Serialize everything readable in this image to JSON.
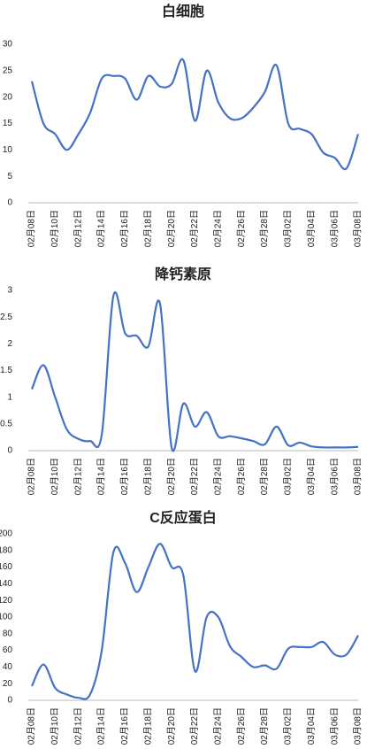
{
  "chart_data": [
    {
      "type": "line",
      "title": "白细胞",
      "categories": [
        "02月08日",
        null,
        "02月10日",
        null,
        "02月12日",
        null,
        "02月14日",
        null,
        "02月16日",
        null,
        "02月18日",
        null,
        "02月20日",
        null,
        "02月22日",
        null,
        "02月24日",
        null,
        "02月26日",
        null,
        "02月28日",
        null,
        "03月02日",
        null,
        "03月04日",
        null,
        "03月06日",
        null,
        "03月08日"
      ],
      "series": [
        {
          "name": "白细胞",
          "color": "#4472c4",
          "values": [
            23,
            15,
            13,
            10,
            13,
            17,
            23.5,
            24,
            23.5,
            19.5,
            24,
            22,
            22.5,
            27,
            15.5,
            25,
            19,
            16,
            16,
            18,
            21,
            26,
            15,
            14,
            13,
            9.5,
            8.5,
            6.5,
            13
          ]
        }
      ],
      "ylim": [
        0,
        30
      ],
      "yticks": [
        0,
        5,
        10,
        15,
        20,
        25,
        30
      ],
      "grid": false
    },
    {
      "type": "line",
      "title": "降钙素原",
      "categories": [
        "02月08日",
        null,
        "02月10日",
        null,
        "02月12日",
        null,
        "02月14日",
        null,
        "02月16日",
        null,
        "02月18日",
        null,
        "02月20日",
        null,
        "02月22日",
        null,
        "02月24日",
        null,
        "02月26日",
        null,
        "02月28日",
        null,
        "03月02日",
        null,
        "03月04日",
        null,
        "03月06日",
        null,
        "03月08日"
      ],
      "series": [
        {
          "name": "降钙素原",
          "color": "#4472c4",
          "values": [
            1.15,
            1.6,
            1.0,
            0.4,
            0.22,
            0.18,
            0.3,
            2.9,
            2.2,
            2.15,
            1.95,
            2.75,
            0.05,
            0.88,
            0.45,
            0.72,
            0.27,
            0.27,
            0.23,
            0.18,
            0.12,
            0.45,
            0.1,
            0.15,
            0.08,
            0.06,
            0.06,
            0.06,
            0.07
          ]
        }
      ],
      "ylim": [
        0,
        3
      ],
      "yticks": [
        0,
        0.5,
        1,
        1.5,
        2,
        2.5,
        3
      ],
      "grid": false
    },
    {
      "type": "line",
      "title": "C反应蛋白",
      "categories": [
        "02月08日",
        null,
        "02月10日",
        null,
        "02月12日",
        null,
        "02月14日",
        null,
        "02月16日",
        null,
        "02月18日",
        null,
        "02月20日",
        null,
        "02月22日",
        null,
        "02月24日",
        null,
        "02月26日",
        null,
        "02月28日",
        null,
        "03月02日",
        null,
        "03月04日",
        null,
        "03月06日",
        null,
        "03月08日"
      ],
      "series": [
        {
          "name": "C反应蛋白",
          "color": "#4472c4",
          "values": [
            17,
            43,
            15,
            7,
            3,
            7,
            60,
            178,
            165,
            130,
            160,
            188,
            160,
            150,
            35,
            100,
            100,
            65,
            52,
            40,
            42,
            38,
            62,
            64,
            64,
            70,
            55,
            55,
            78
          ]
        }
      ],
      "ylim": [
        0,
        200
      ],
      "yticks": [
        0,
        20,
        40,
        60,
        80,
        100,
        120,
        140,
        160,
        180,
        200
      ],
      "grid": false
    }
  ]
}
